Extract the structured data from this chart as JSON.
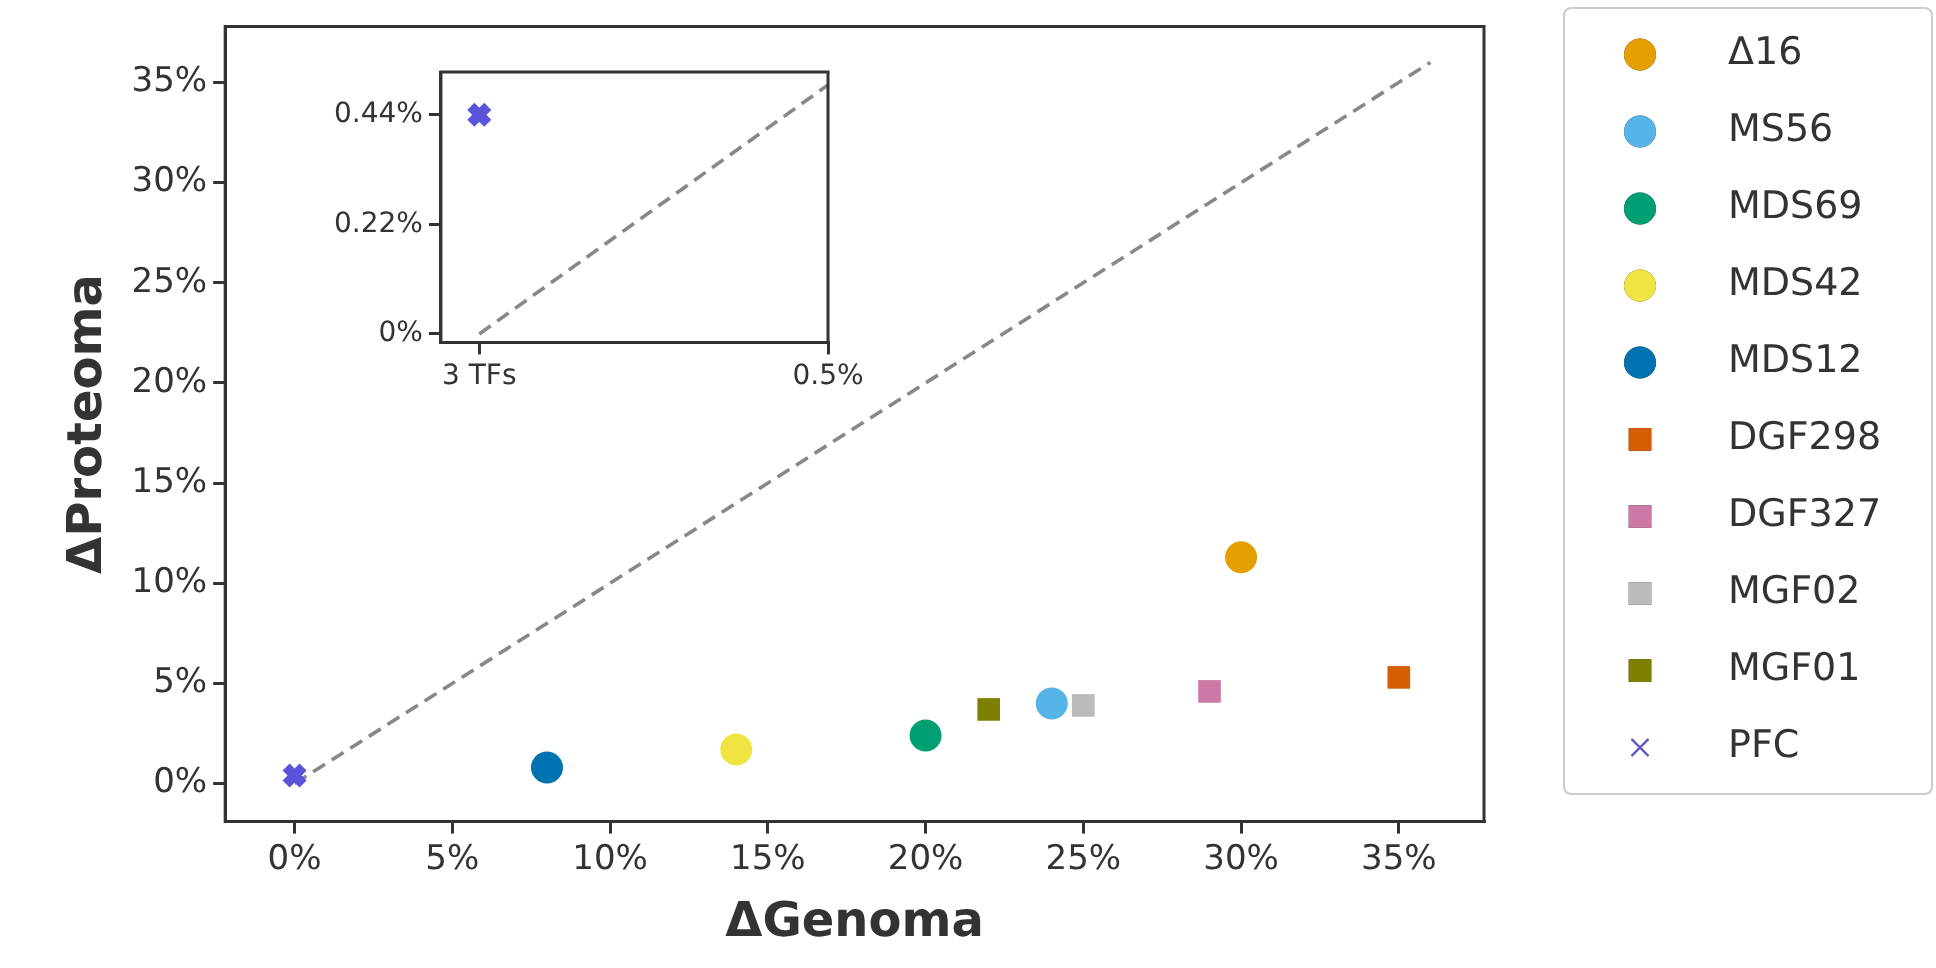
{
  "chart_data": [
    {
      "type": "scatter",
      "xlabel": "ΔGenoma",
      "ylabel": "ΔProteoma",
      "xlim": [
        -2.2,
        37.7
      ],
      "ylim": [
        -1.9,
        37.8
      ],
      "xticks": [
        {
          "value": 0,
          "label": "0%"
        },
        {
          "value": 5,
          "label": "5%"
        },
        {
          "value": 10,
          "label": "10%"
        },
        {
          "value": 15,
          "label": "15%"
        },
        {
          "value": 20,
          "label": "20%"
        },
        {
          "value": 25,
          "label": "25%"
        },
        {
          "value": 30,
          "label": "30%"
        },
        {
          "value": 35,
          "label": "35%"
        }
      ],
      "yticks": [
        {
          "value": 0,
          "label": "0%"
        },
        {
          "value": 5,
          "label": "5%"
        },
        {
          "value": 10,
          "label": "10%"
        },
        {
          "value": 15,
          "label": "15%"
        },
        {
          "value": 20,
          "label": "20%"
        },
        {
          "value": 25,
          "label": "25%"
        },
        {
          "value": 30,
          "label": "30%"
        },
        {
          "value": 35,
          "label": "35%"
        }
      ],
      "legend": "right",
      "grid": false,
      "series": [
        {
          "type": "line",
          "color": "#888888",
          "x": [
            0,
            36
          ],
          "values": [
            0,
            36
          ],
          "line_style": "dashed",
          "marker": "none"
        },
        {
          "name": "Δ16",
          "color": "#e69f00",
          "marker": "circle",
          "x": [
            30
          ],
          "values": [
            11.3
          ]
        },
        {
          "name": "MS56",
          "color": "#56b4e9",
          "marker": "circle",
          "x": [
            24
          ],
          "values": [
            4.0
          ]
        },
        {
          "name": "MDS69",
          "color": "#009e73",
          "marker": "circle",
          "x": [
            20
          ],
          "values": [
            2.4
          ]
        },
        {
          "name": "MDS42",
          "color": "#f0e442",
          "marker": "circle",
          "x": [
            14
          ],
          "values": [
            1.7
          ]
        },
        {
          "name": "MDS12",
          "color": "#0072b2",
          "marker": "circle",
          "x": [
            8
          ],
          "values": [
            0.8
          ]
        },
        {
          "name": "DGF298",
          "color": "#d55e00",
          "marker": "square",
          "x": [
            35
          ],
          "values": [
            5.3
          ]
        },
        {
          "name": "DGF327",
          "color": "#cc79a7",
          "marker": "square",
          "x": [
            29
          ],
          "values": [
            4.6
          ]
        },
        {
          "name": "MGF02",
          "color": "#bbbbbb",
          "marker": "square",
          "x": [
            25
          ],
          "values": [
            3.9
          ]
        },
        {
          "name": "MGF01",
          "color": "#808000",
          "marker": "square",
          "x": [
            22
          ],
          "values": [
            3.7
          ]
        },
        {
          "name": "PFC",
          "color": "#5b54db",
          "marker": "cross",
          "x": [
            0
          ],
          "values": [
            0.4
          ]
        }
      ]
    },
    {
      "type": "scatter",
      "categories": [
        "3 TFs",
        "0.5%"
      ],
      "ylim": [
        -0.017,
        0.526
      ],
      "yticks": [
        {
          "value": 0,
          "label": "0%"
        },
        {
          "value": 0.22,
          "label": "0.22%"
        },
        {
          "value": 0.44,
          "label": "0.44%"
        }
      ],
      "grid": false,
      "series": [
        {
          "type": "line",
          "color": "#888888",
          "values": [
            0,
            0.5
          ],
          "line_style": "dashed",
          "marker": "none"
        },
        {
          "color": "#5b54db",
          "marker": "cross",
          "values": [
            0.44,
            null
          ]
        }
      ]
    }
  ]
}
